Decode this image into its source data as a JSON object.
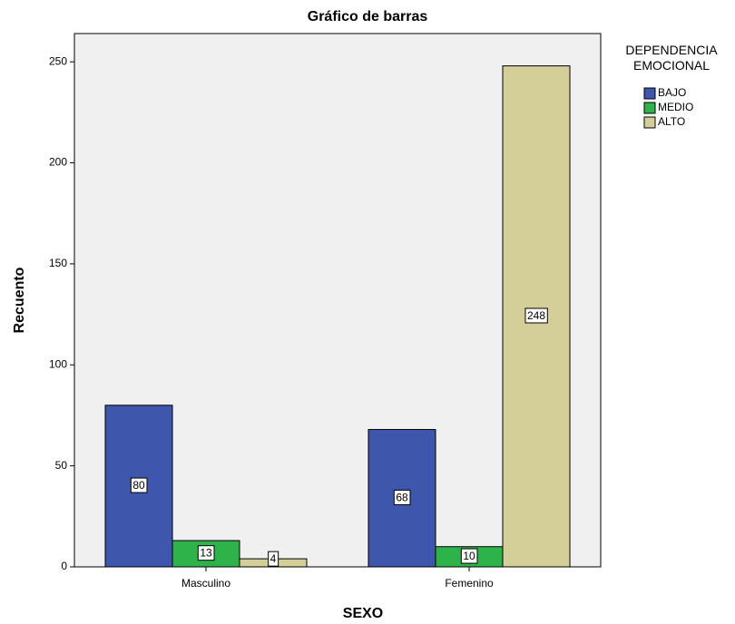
{
  "chart_data": {
    "type": "bar",
    "title": "Gráfico de barras",
    "x_label": "SEXO",
    "y_label": "Recuento",
    "legend_title": "DEPENDENCIA EMOCIONAL",
    "categories": [
      "Masculino",
      "Femenino"
    ],
    "series": [
      {
        "name": "BAJO",
        "color": "#3e56ab",
        "values": [
          80,
          68
        ]
      },
      {
        "name": "MEDIO",
        "color": "#2eb34a",
        "values": [
          13,
          10
        ]
      },
      {
        "name": "ALTO",
        "color": "#d4cf98",
        "values": [
          4,
          248
        ]
      }
    ],
    "ylim": [
      0,
      264
    ],
    "yticks": [
      0,
      50,
      100,
      150,
      200,
      250
    ],
    "legend": "right"
  }
}
